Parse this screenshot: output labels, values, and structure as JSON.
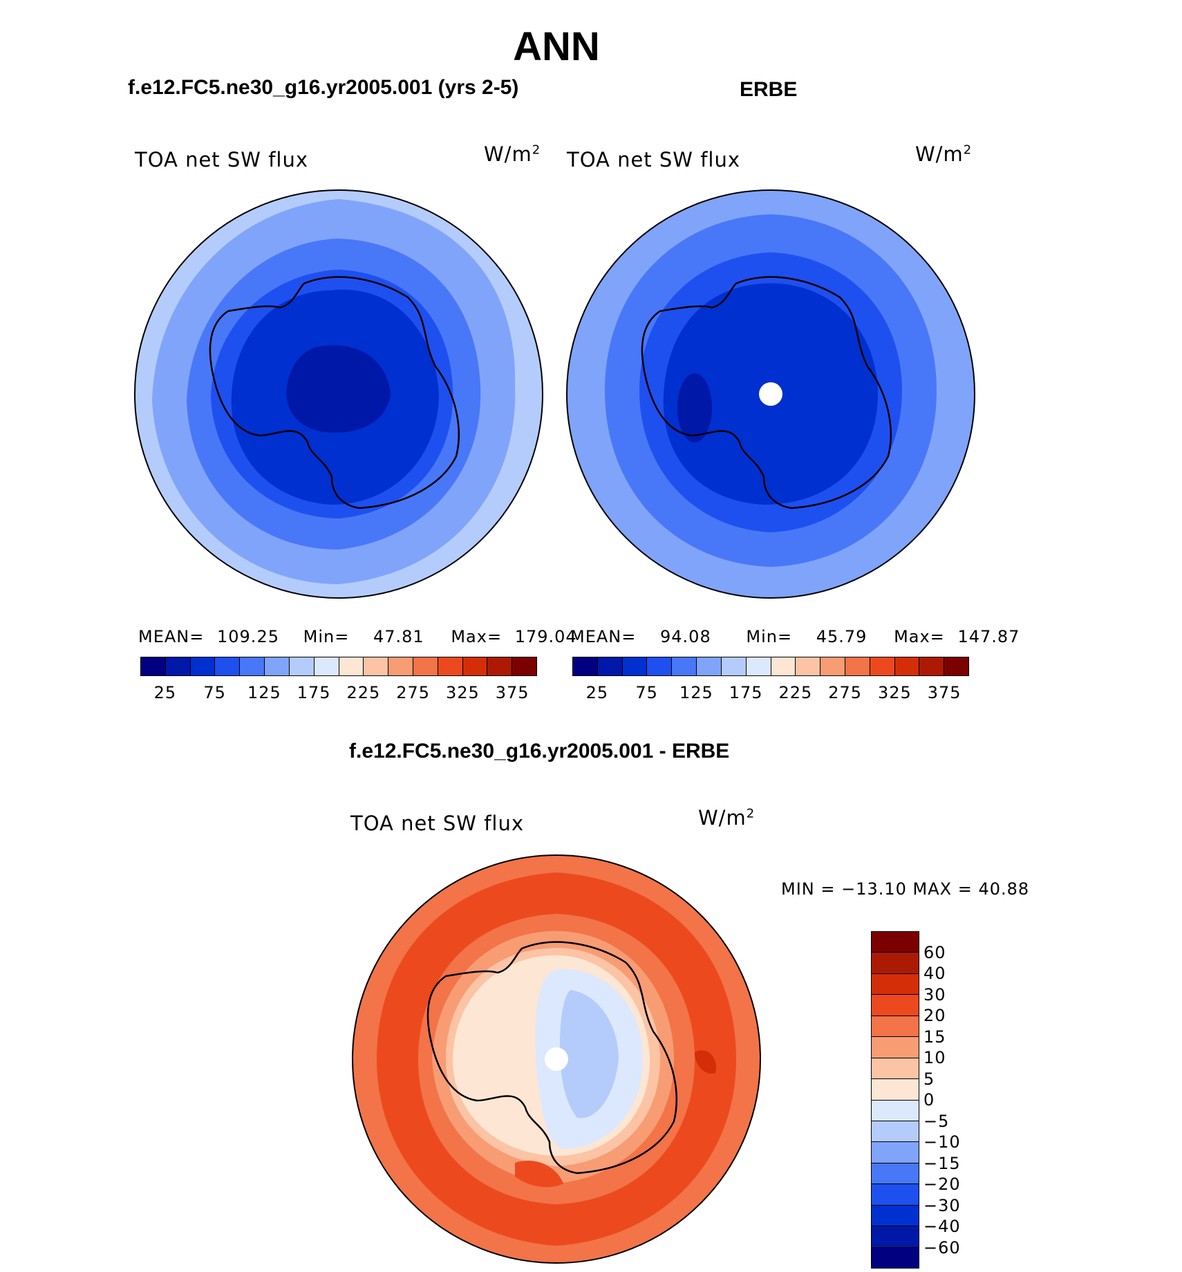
{
  "title": "ANN",
  "colors": {
    "abs_scale": [
      "#000080",
      "#0018a8",
      "#0030d0",
      "#1e50f0",
      "#4878f8",
      "#80a4fa",
      "#b4ccfc",
      "#dce8fd",
      "#fde6d4",
      "#fcc4a4",
      "#f89c74",
      "#f27448",
      "#ec4a1e",
      "#d42e08",
      "#ac1a04",
      "#7c0000"
    ],
    "diff_scale": [
      "#000080",
      "#0018a8",
      "#0030d0",
      "#1e50f0",
      "#4878f8",
      "#80a4fa",
      "#b4ccfc",
      "#dce8fd",
      "#fde6d4",
      "#fcc4a4",
      "#f89c74",
      "#f27448",
      "#ec4a1e",
      "#d42e08",
      "#ac1a04",
      "#7c0000"
    ]
  },
  "panels": [
    {
      "title": "f.e12.FC5.ne30_g16.yr2005.001 (yrs 2-5)",
      "field": "TOA net SW flux",
      "units": "W/m",
      "units_sup": "2",
      "stats": {
        "mean_label": "MEAN=",
        "mean": "109.25",
        "min_label": "Min=",
        "min": "47.81",
        "max_label": "Max=",
        "max": "179.04"
      },
      "colorbar_labels": [
        "25",
        "75",
        "125",
        "175",
        "225",
        "275",
        "325",
        "375"
      ]
    },
    {
      "title": "ERBE",
      "field": "TOA net SW flux",
      "units": "W/m",
      "units_sup": "2",
      "stats": {
        "mean_label": "MEAN=",
        "mean": "94.08",
        "min_label": "Min=",
        "min": "45.79",
        "max_label": "Max=",
        "max": "147.87"
      },
      "colorbar_labels": [
        "25",
        "75",
        "125",
        "175",
        "225",
        "275",
        "325",
        "375"
      ]
    }
  ],
  "diff": {
    "title": "f.e12.FC5.ne30_g16.yr2005.001 - ERBE",
    "field": "TOA net SW flux",
    "units": "W/m",
    "units_sup": "2",
    "minmax": "MIN = −13.10 MAX =   40.88",
    "colorbar_labels": [
      "60",
      "40",
      "30",
      "20",
      "15",
      "10",
      "5",
      "0",
      "−5",
      "−10",
      "−15",
      "−20",
      "−30",
      "−40",
      "−60"
    ]
  }
}
